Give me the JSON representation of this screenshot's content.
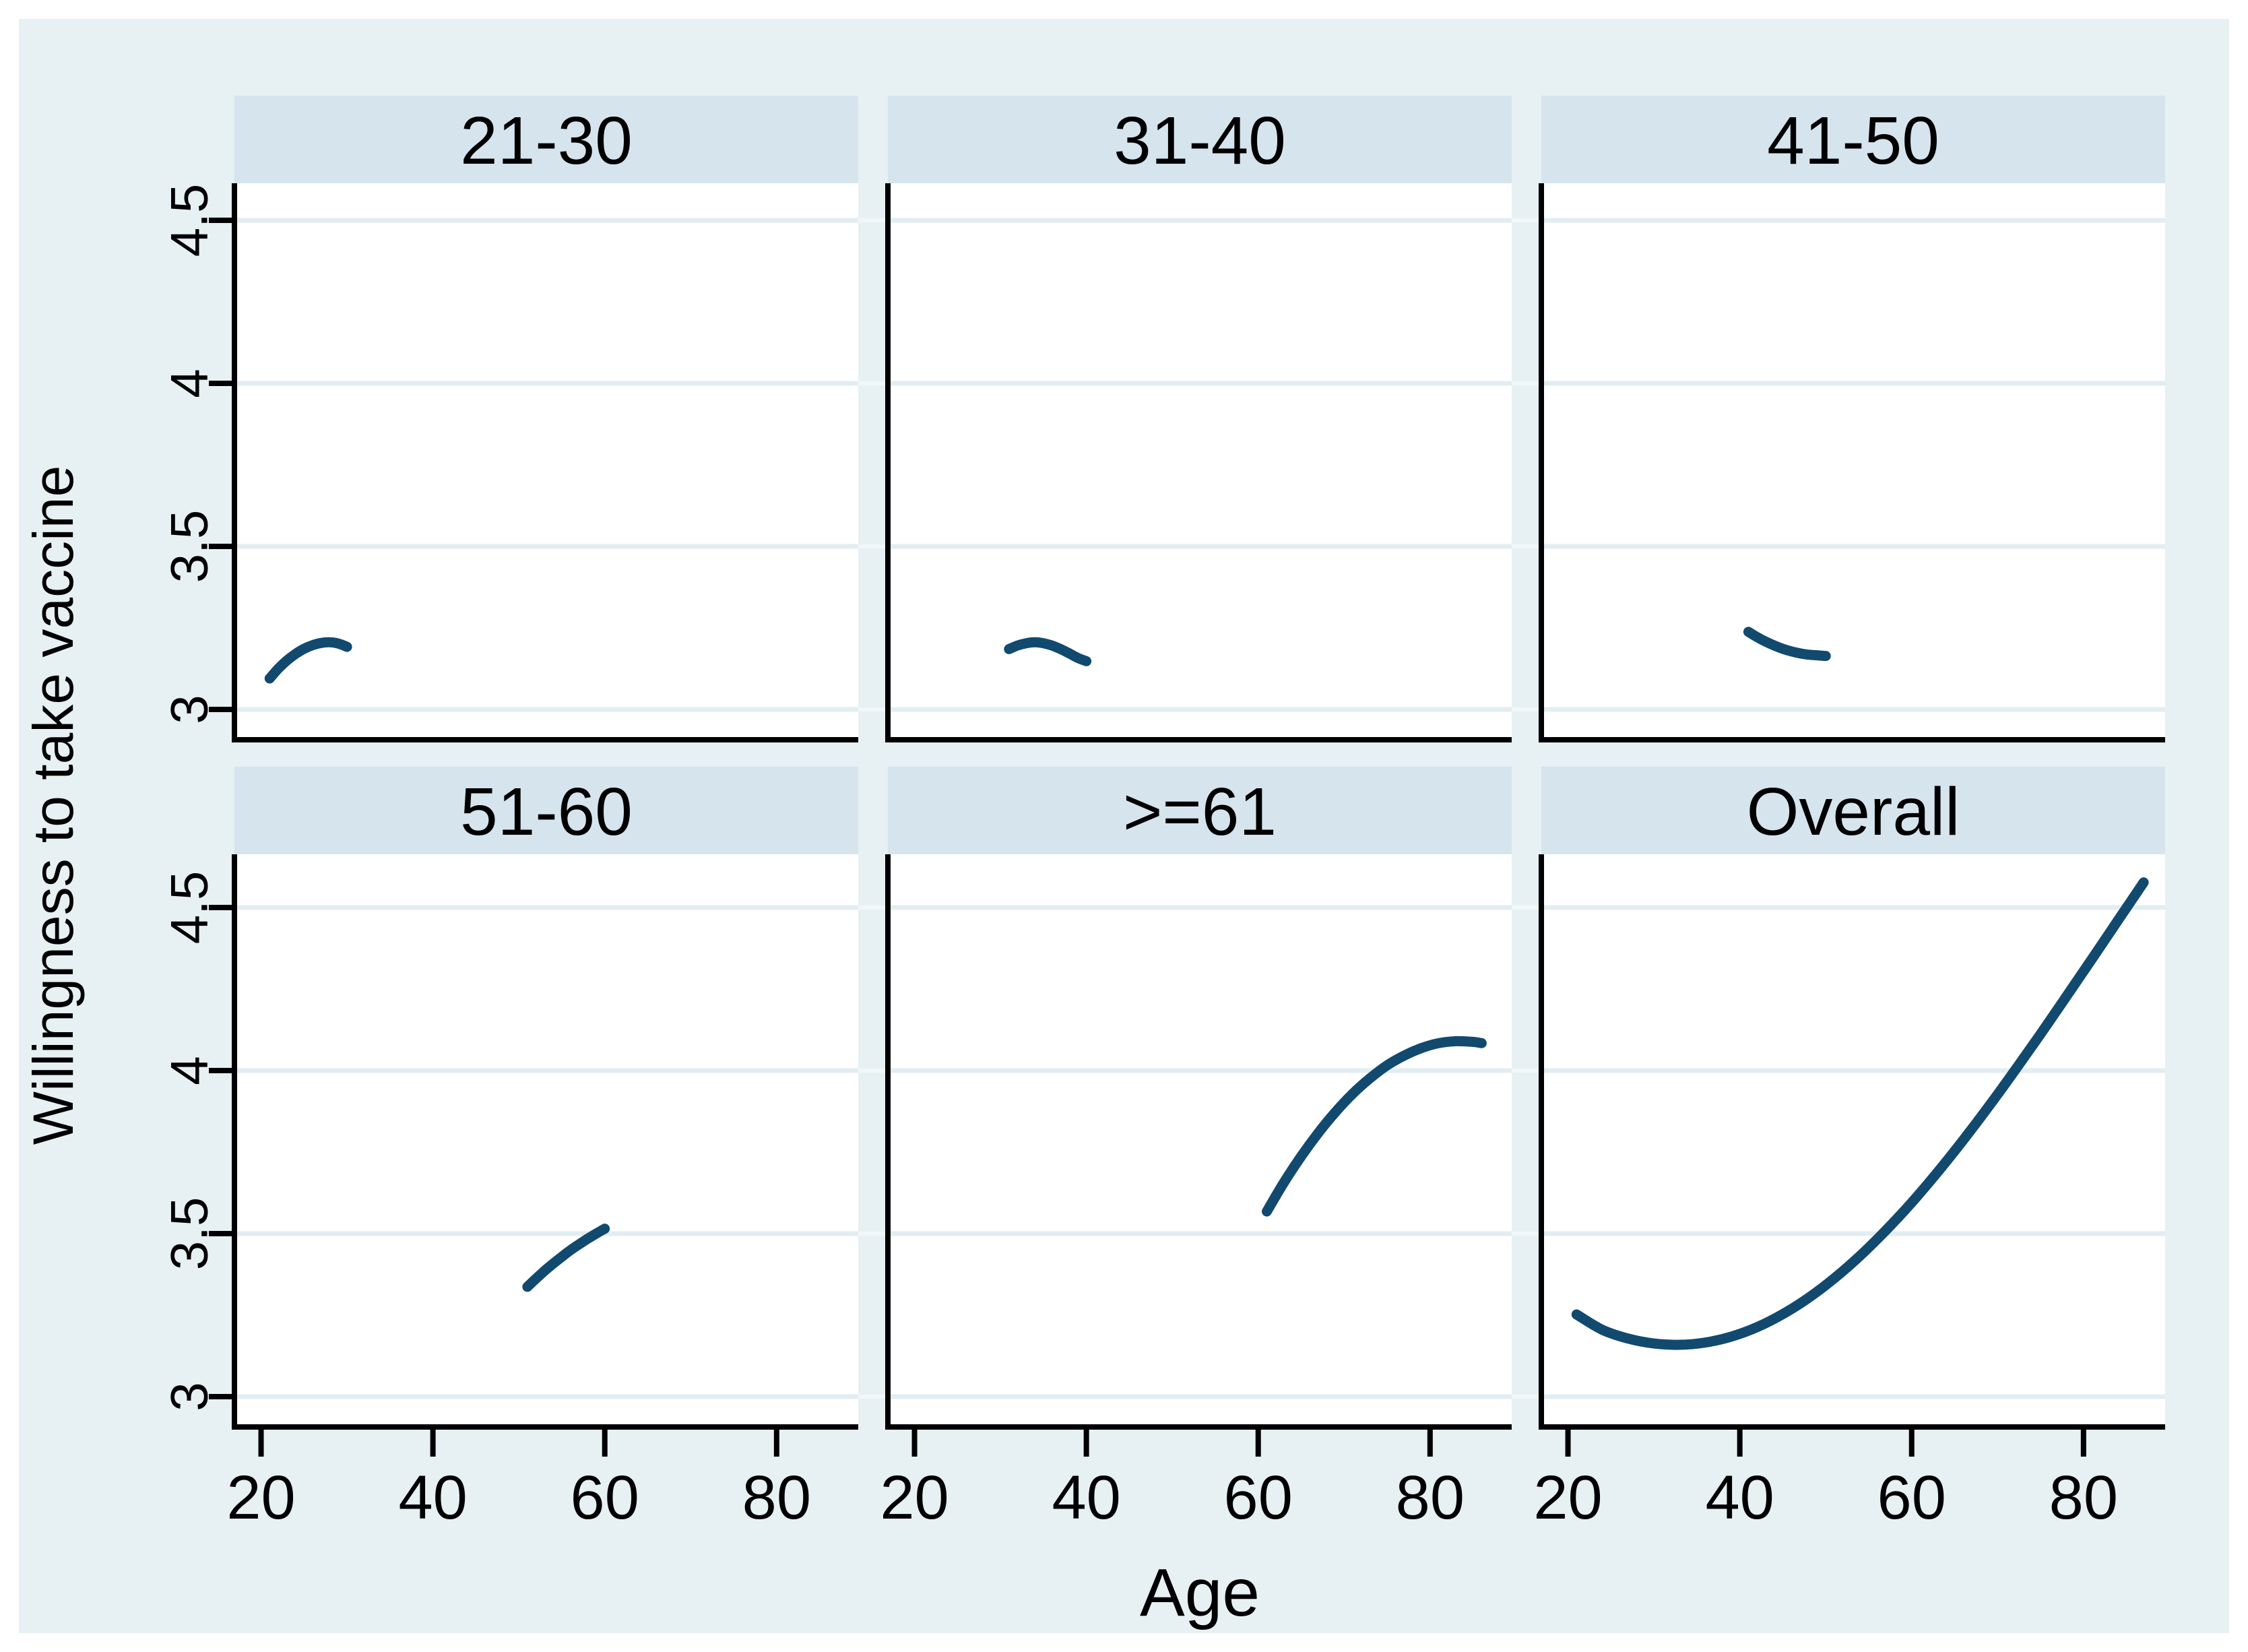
{
  "figure": {
    "ylabel": "Willingness to take vaccine",
    "xlabel": "Age",
    "colors": {
      "page_background": "#ffffff",
      "graph_background": "#e7f0f2",
      "plot_background": "#ffffff",
      "facet_header_background": "#d6e4ee",
      "gridline": "#e2edf1",
      "gap_gridline": "#f1f8fa",
      "axis": "#000000",
      "line": "#12496f",
      "text": "#000000"
    }
  },
  "chart_data": {
    "type": "line",
    "title": "",
    "xlabel": "Age",
    "ylabel": "Willingness to take vaccine",
    "legend": "none",
    "grid": "horizontal",
    "layout": "2x3 facets, shared axes",
    "x_ticks": [
      20,
      40,
      60,
      80
    ],
    "y_ticks": [
      3,
      3.5,
      4,
      4.5
    ],
    "y_tick_labels": [
      "3",
      "3.5",
      "4",
      "4.5"
    ],
    "xlim": [
      16.9,
      89.5
    ],
    "ylim": [
      2.91,
      4.62
    ],
    "line_color": "#12496f",
    "facets": [
      {
        "label": "21-30",
        "points": [
          [
            21,
            3.095
          ],
          [
            22,
            3.125
          ],
          [
            23,
            3.15
          ],
          [
            24,
            3.17
          ],
          [
            25,
            3.186
          ],
          [
            26,
            3.197
          ],
          [
            27,
            3.204
          ],
          [
            28,
            3.206
          ],
          [
            29,
            3.202
          ],
          [
            30,
            3.192
          ]
        ]
      },
      {
        "label": "31-40",
        "points": [
          [
            31,
            3.185
          ],
          [
            32,
            3.196
          ],
          [
            33,
            3.203
          ],
          [
            34,
            3.206
          ],
          [
            35,
            3.203
          ],
          [
            36,
            3.196
          ],
          [
            37,
            3.185
          ],
          [
            38,
            3.172
          ],
          [
            39,
            3.158
          ],
          [
            40,
            3.148
          ]
        ]
      },
      {
        "label": "41-50",
        "points": [
          [
            41,
            3.238
          ],
          [
            42,
            3.222
          ],
          [
            43,
            3.208
          ],
          [
            44,
            3.196
          ],
          [
            45,
            3.186
          ],
          [
            46,
            3.178
          ],
          [
            47,
            3.172
          ],
          [
            48,
            3.168
          ],
          [
            49,
            3.166
          ],
          [
            50,
            3.164
          ]
        ]
      },
      {
        "label": "51-60",
        "points": [
          [
            51,
            3.337
          ],
          [
            52,
            3.362
          ],
          [
            53,
            3.386
          ],
          [
            54,
            3.408
          ],
          [
            55,
            3.429
          ],
          [
            56,
            3.449
          ],
          [
            57,
            3.467
          ],
          [
            58,
            3.484
          ],
          [
            59,
            3.5
          ],
          [
            60,
            3.515
          ]
        ]
      },
      {
        "label": ">=61",
        "points": [
          [
            61,
            3.568
          ],
          [
            63,
            3.657
          ],
          [
            65,
            3.737
          ],
          [
            67,
            3.809
          ],
          [
            69,
            3.873
          ],
          [
            71,
            3.929
          ],
          [
            73,
            3.976
          ],
          [
            75,
            4.016
          ],
          [
            77,
            4.046
          ],
          [
            79,
            4.069
          ],
          [
            81,
            4.084
          ],
          [
            83,
            4.09
          ],
          [
            85,
            4.088
          ],
          [
            86,
            4.084
          ]
        ]
      },
      {
        "label": "Overall",
        "points": [
          [
            21,
            3.252
          ],
          [
            24,
            3.205
          ],
          [
            27,
            3.178
          ],
          [
            30,
            3.163
          ],
          [
            33,
            3.159
          ],
          [
            36,
            3.166
          ],
          [
            39,
            3.184
          ],
          [
            42,
            3.213
          ],
          [
            45,
            3.253
          ],
          [
            48,
            3.303
          ],
          [
            51,
            3.363
          ],
          [
            54,
            3.432
          ],
          [
            57,
            3.51
          ],
          [
            60,
            3.595
          ],
          [
            63,
            3.688
          ],
          [
            66,
            3.787
          ],
          [
            69,
            3.891
          ],
          [
            72,
            4.0
          ],
          [
            75,
            4.112
          ],
          [
            78,
            4.227
          ],
          [
            81,
            4.343
          ],
          [
            84,
            4.46
          ],
          [
            87,
            4.577
          ]
        ]
      }
    ]
  }
}
